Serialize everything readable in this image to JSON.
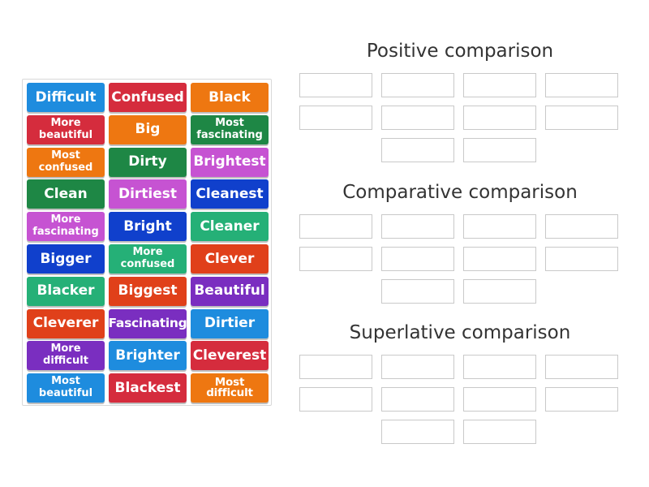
{
  "colors": {
    "blue": "#1e8cde",
    "red": "#d52c3d",
    "orange": "#ee7711",
    "green": "#1e8745",
    "purple": "#c653d2",
    "navy": "#1040cc",
    "teal": "#25b077",
    "scarlet": "#e0401a",
    "violet": "#7a2ec0"
  },
  "tiles": [
    {
      "label": "Difficult",
      "color": "blue"
    },
    {
      "label": "Confused",
      "color": "red"
    },
    {
      "label": "Black",
      "color": "orange"
    },
    {
      "label": "More\nbeautiful",
      "color": "red"
    },
    {
      "label": "Big",
      "color": "orange"
    },
    {
      "label": "Most\nfascinating",
      "color": "green"
    },
    {
      "label": "Most\nconfused",
      "color": "orange"
    },
    {
      "label": "Dirty",
      "color": "green"
    },
    {
      "label": "Brightest",
      "color": "purple"
    },
    {
      "label": "Clean",
      "color": "green"
    },
    {
      "label": "Dirtiest",
      "color": "purple"
    },
    {
      "label": "Cleanest",
      "color": "navy"
    },
    {
      "label": "More\nfascinating",
      "color": "purple"
    },
    {
      "label": "Bright",
      "color": "navy"
    },
    {
      "label": "Cleaner",
      "color": "teal"
    },
    {
      "label": "Bigger",
      "color": "navy"
    },
    {
      "label": "More\nconfused",
      "color": "teal"
    },
    {
      "label": "Clever",
      "color": "scarlet"
    },
    {
      "label": "Blacker",
      "color": "teal"
    },
    {
      "label": "Biggest",
      "color": "scarlet"
    },
    {
      "label": "Beautiful",
      "color": "violet"
    },
    {
      "label": "Cleverer",
      "color": "scarlet"
    },
    {
      "label": "Fascinating",
      "color": "violet"
    },
    {
      "label": "Dirtier",
      "color": "blue"
    },
    {
      "label": "More\ndifficult",
      "color": "violet"
    },
    {
      "label": "Brighter",
      "color": "blue"
    },
    {
      "label": "Cleverest",
      "color": "red"
    },
    {
      "label": "Most\nbeautiful",
      "color": "blue"
    },
    {
      "label": "Blackest",
      "color": "red"
    },
    {
      "label": "Most difficult",
      "color": "orange"
    }
  ],
  "groups": [
    {
      "title": "Positive comparison",
      "slots": 10
    },
    {
      "title": "Comparative comparison",
      "slots": 10
    },
    {
      "title": "Superlative comparison",
      "slots": 10
    }
  ]
}
